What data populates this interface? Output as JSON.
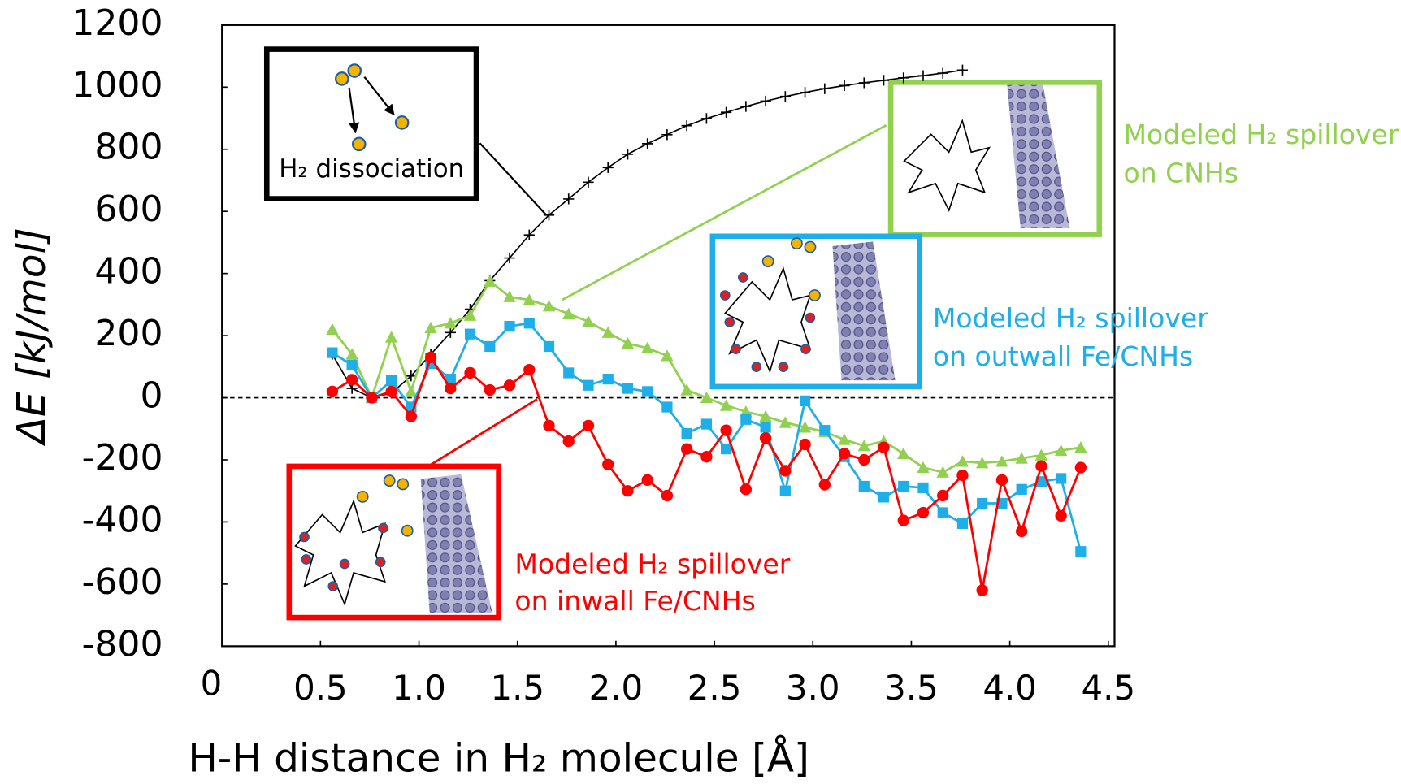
{
  "chart_data": {
    "type": "line",
    "xlabel": "H-H distance in H₂ molecule [Å]",
    "ylabel": "ΔE [kJ/mol]",
    "xlim": [
      0,
      4.5
    ],
    "xticks": [
      0,
      0.5,
      {
        "value": 1,
        "label": "1.0"
      },
      1.5,
      {
        "value": 2,
        "label": "2.0"
      },
      2.5,
      {
        "value": 3,
        "label": "3.0"
      },
      3.5,
      {
        "value": 4,
        "label": "4.0"
      },
      4.5
    ],
    "ylim": [
      -800,
      1200
    ],
    "yticks": [
      -800,
      -600,
      -400,
      -200,
      0,
      200,
      400,
      600,
      800,
      1000,
      1200
    ],
    "x": [
      0.56,
      0.66,
      0.76,
      0.86,
      0.96,
      1.06,
      1.16,
      1.26,
      1.36,
      1.46,
      1.56,
      1.66,
      1.76,
      1.86,
      1.96,
      2.06,
      2.16,
      2.26,
      2.36,
      2.46,
      2.56,
      2.66,
      2.76,
      2.86,
      2.96,
      3.06,
      3.16,
      3.26,
      3.36,
      3.46,
      3.56,
      3.66,
      3.76,
      3.86,
      3.96,
      4.06,
      4.16,
      4.26,
      4.36
    ],
    "series": [
      {
        "color": "#000000",
        "marker": "plus",
        "values": [
          140,
          30,
          0,
          15,
          70,
          140,
          210,
          285,
          377,
          450,
          524,
          588,
          640,
          694,
          741,
          784,
          818,
          847,
          876,
          899,
          919,
          938,
          955,
          970,
          983,
          995,
          1005,
          1014,
          1022,
          1030,
          1037,
          1045,
          1055,
          null,
          null,
          null,
          null,
          null,
          null
        ]
      },
      {
        "color": "#92d050",
        "marker": "triangle",
        "values": [
          220,
          140,
          0,
          195,
          20,
          225,
          240,
          265,
          375,
          325,
          315,
          295,
          270,
          245,
          210,
          175,
          160,
          135,
          25,
          0,
          -25,
          -45,
          -60,
          -80,
          -95,
          -110,
          -135,
          -155,
          -140,
          -180,
          -225,
          -240,
          -205,
          -210,
          -205,
          -195,
          -185,
          -170,
          -160
        ]
      },
      {
        "color": "#1eaee8",
        "marker": "square",
        "values": [
          145,
          105,
          0,
          55,
          -30,
          110,
          60,
          205,
          165,
          230,
          240,
          165,
          80,
          40,
          60,
          30,
          20,
          -30,
          -115,
          -85,
          -165,
          -70,
          -95,
          -300,
          -10,
          -105,
          -190,
          -285,
          -320,
          -285,
          -290,
          -370,
          -405,
          -340,
          -340,
          -295,
          -270,
          -260,
          -495
        ]
      },
      {
        "color": "#ff0000",
        "marker": "circle",
        "values": [
          20,
          58,
          0,
          20,
          -60,
          130,
          30,
          80,
          25,
          40,
          90,
          -90,
          -140,
          -90,
          -215,
          -300,
          -265,
          -315,
          -165,
          -190,
          -105,
          -295,
          -130,
          -235,
          -150,
          -280,
          -180,
          -200,
          -160,
          -395,
          -370,
          -315,
          -250,
          -620,
          -265,
          -430,
          -220,
          -380,
          -225
        ]
      }
    ],
    "annotations": [
      {
        "lines": [
          "H₂ dissociation"
        ],
        "color": "#000000"
      },
      {
        "lines": [
          "Modeled H₂ spillover",
          "on CNHs"
        ],
        "color": "#92d050"
      },
      {
        "lines": [
          "Modeled H₂ spillover",
          "on outwall Fe/CNHs"
        ],
        "color": "#1eaee8"
      },
      {
        "lines": [
          "Modeled H₂ spillover",
          "on inwall Fe/CNHs"
        ],
        "color": "#ff0000"
      }
    ]
  }
}
